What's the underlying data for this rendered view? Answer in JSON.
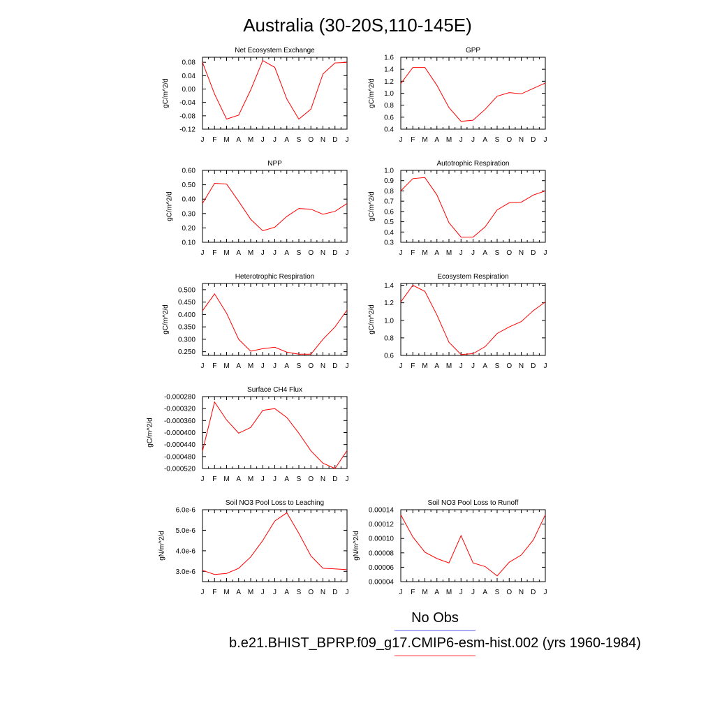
{
  "figure": {
    "title": "Australia (30-20S,110-145E)",
    "legend": [
      {
        "label": "No Obs",
        "color": "#7777ee"
      },
      {
        "label": "b.e21.BHIST_BPRP.f09_g17.CMIP6-esm-hist.002 (yrs 1960-1984)",
        "color": "#ff6666"
      }
    ],
    "line_color": "#ff0000"
  },
  "chart_data": [
    {
      "type": "line",
      "title": "Net Ecosystem Exchange",
      "ylabel": "gC/m^2/d",
      "categories": [
        "J",
        "F",
        "M",
        "A",
        "M",
        "J",
        "J",
        "A",
        "S",
        "O",
        "N",
        "D",
        "J"
      ],
      "ylim": [
        -0.12,
        0.095
      ],
      "yticks": [
        0.08,
        0.04,
        0.0,
        -0.04,
        -0.08,
        -0.12
      ],
      "ytick_labels": [
        "0.08",
        "0.04",
        "0.00",
        "-0.04",
        "-0.08",
        "-0.12"
      ],
      "values": [
        0.08,
        -0.015,
        -0.09,
        -0.078,
        -0.003,
        0.085,
        0.065,
        -0.03,
        -0.09,
        -0.06,
        0.045,
        0.078,
        0.08
      ]
    },
    {
      "type": "line",
      "title": "GPP",
      "ylabel": "gC/m^2/d",
      "categories": [
        "J",
        "F",
        "M",
        "A",
        "M",
        "J",
        "J",
        "A",
        "S",
        "O",
        "N",
        "D",
        "J"
      ],
      "ylim": [
        0.4,
        1.6
      ],
      "yticks": [
        1.6,
        1.4,
        1.2,
        1.0,
        0.8,
        0.6,
        0.4
      ],
      "ytick_labels": [
        "1.6",
        "1.4",
        "1.2",
        "1.0",
        "0.8",
        "0.6",
        "0.4"
      ],
      "values": [
        1.16,
        1.43,
        1.43,
        1.13,
        0.76,
        0.53,
        0.55,
        0.73,
        0.95,
        1.01,
        0.99,
        1.08,
        1.17
      ]
    },
    {
      "type": "line",
      "title": "NPP",
      "ylabel": "gC/m^2/d",
      "categories": [
        "J",
        "F",
        "M",
        "A",
        "M",
        "J",
        "J",
        "A",
        "S",
        "O",
        "N",
        "D",
        "J"
      ],
      "ylim": [
        0.1,
        0.6
      ],
      "yticks": [
        0.6,
        0.5,
        0.4,
        0.3,
        0.2,
        0.1
      ],
      "ytick_labels": [
        "0.60",
        "0.50",
        "0.40",
        "0.30",
        "0.20",
        "0.10"
      ],
      "values": [
        0.37,
        0.51,
        0.505,
        0.385,
        0.26,
        0.18,
        0.205,
        0.28,
        0.335,
        0.33,
        0.295,
        0.315,
        0.37
      ]
    },
    {
      "type": "line",
      "title": "Autotrophic Respiration",
      "ylabel": "gC/m^2/d",
      "categories": [
        "J",
        "F",
        "M",
        "A",
        "M",
        "J",
        "J",
        "A",
        "S",
        "O",
        "N",
        "D",
        "J"
      ],
      "ylim": [
        0.3,
        1.0
      ],
      "yticks": [
        1.0,
        0.9,
        0.8,
        0.7,
        0.6,
        0.5,
        0.4,
        0.3
      ],
      "ytick_labels": [
        "1.0",
        "0.9",
        "0.8",
        "0.7",
        "0.6",
        "0.5",
        "0.4",
        "0.3"
      ],
      "values": [
        0.8,
        0.92,
        0.93,
        0.76,
        0.49,
        0.35,
        0.35,
        0.45,
        0.615,
        0.685,
        0.69,
        0.76,
        0.8
      ]
    },
    {
      "type": "line",
      "title": "Heterotrophic Respiration",
      "ylabel": "gC/m^2/d",
      "categories": [
        "J",
        "F",
        "M",
        "A",
        "M",
        "J",
        "J",
        "A",
        "S",
        "O",
        "N",
        "D",
        "J"
      ],
      "ylim": [
        0.235,
        0.525
      ],
      "yticks": [
        0.5,
        0.45,
        0.4,
        0.35,
        0.3,
        0.25
      ],
      "ytick_labels": [
        "0.500",
        "0.450",
        "0.400",
        "0.350",
        "0.300",
        "0.250"
      ],
      "values": [
        0.415,
        0.483,
        0.405,
        0.3,
        0.252,
        0.262,
        0.268,
        0.248,
        0.24,
        0.24,
        0.3,
        0.35,
        0.418
      ]
    },
    {
      "type": "line",
      "title": "Ecosystem Respiration",
      "ylabel": "gC/m^2/d",
      "categories": [
        "J",
        "F",
        "M",
        "A",
        "M",
        "J",
        "J",
        "A",
        "S",
        "O",
        "N",
        "D",
        "J"
      ],
      "ylim": [
        0.6,
        1.42
      ],
      "yticks": [
        1.4,
        1.2,
        1.0,
        0.8,
        0.6
      ],
      "ytick_labels": [
        "1.4",
        "1.2",
        "1.0",
        "0.8",
        "0.6"
      ],
      "values": [
        1.21,
        1.4,
        1.33,
        1.06,
        0.75,
        0.61,
        0.62,
        0.7,
        0.85,
        0.925,
        0.985,
        1.11,
        1.21
      ]
    },
    {
      "type": "line",
      "title": "Surface CH4 Flux",
      "ylabel": "gC/m^2/d",
      "categories": [
        "J",
        "F",
        "M",
        "A",
        "M",
        "J",
        "J",
        "A",
        "S",
        "O",
        "N",
        "D",
        "J"
      ],
      "ylim": [
        -0.00052,
        -0.00028
      ],
      "yticks": [
        -0.00028,
        -0.00032,
        -0.00036,
        -0.0004,
        -0.00044,
        -0.00048,
        -0.00052
      ],
      "ytick_labels": [
        "-0.000280",
        "-0.000320",
        "-0.000360",
        "-0.000400",
        "-0.000440",
        "-0.000480",
        "-0.000520"
      ],
      "values": [
        -0.000462,
        -0.000298,
        -0.000358,
        -0.000402,
        -0.000383,
        -0.000326,
        -0.00032,
        -0.00035,
        -0.000402,
        -0.000461,
        -0.000502,
        -0.00052,
        -0.00046
      ]
    },
    {
      "type": "line",
      "title": "Soil NO3 Pool Loss to Leaching",
      "ylabel": "gN/m^2/d",
      "categories": [
        "J",
        "F",
        "M",
        "A",
        "M",
        "J",
        "J",
        "A",
        "S",
        "O",
        "N",
        "D",
        "J"
      ],
      "ylim": [
        2.5e-06,
        6e-06
      ],
      "yticks": [
        6e-06,
        5e-06,
        4e-06,
        3e-06
      ],
      "ytick_labels": [
        "6.0e-6",
        "5.0e-6",
        "4.0e-6",
        "3.0e-6"
      ],
      "values": [
        3.05e-06,
        2.85e-06,
        2.9e-06,
        3.15e-06,
        3.7e-06,
        4.5e-06,
        5.45e-06,
        5.85e-06,
        4.85e-06,
        3.75e-06,
        3.15e-06,
        3.12e-06,
        3.08e-06
      ]
    },
    {
      "type": "line",
      "title": "Soil NO3 Pool Loss to Runoff",
      "ylabel": "gN/m^2/d",
      "categories": [
        "J",
        "F",
        "M",
        "A",
        "M",
        "J",
        "J",
        "A",
        "S",
        "O",
        "N",
        "D",
        "J"
      ],
      "ylim": [
        4e-05,
        0.00014
      ],
      "yticks": [
        0.00014,
        0.00012,
        0.0001,
        8e-05,
        6e-05,
        4e-05
      ],
      "ytick_labels": [
        "0.00014",
        "0.00012",
        "0.00010",
        "0.00008",
        "0.00006",
        "0.00004"
      ],
      "values": [
        0.000133,
        0.000102,
        8.1e-05,
        7.2e-05,
        6.6e-05,
        0.000104,
        6.6e-05,
        6.1e-05,
        4.8e-05,
        6.7e-05,
        7.7e-05,
        9.8e-05,
        0.000133
      ]
    }
  ]
}
